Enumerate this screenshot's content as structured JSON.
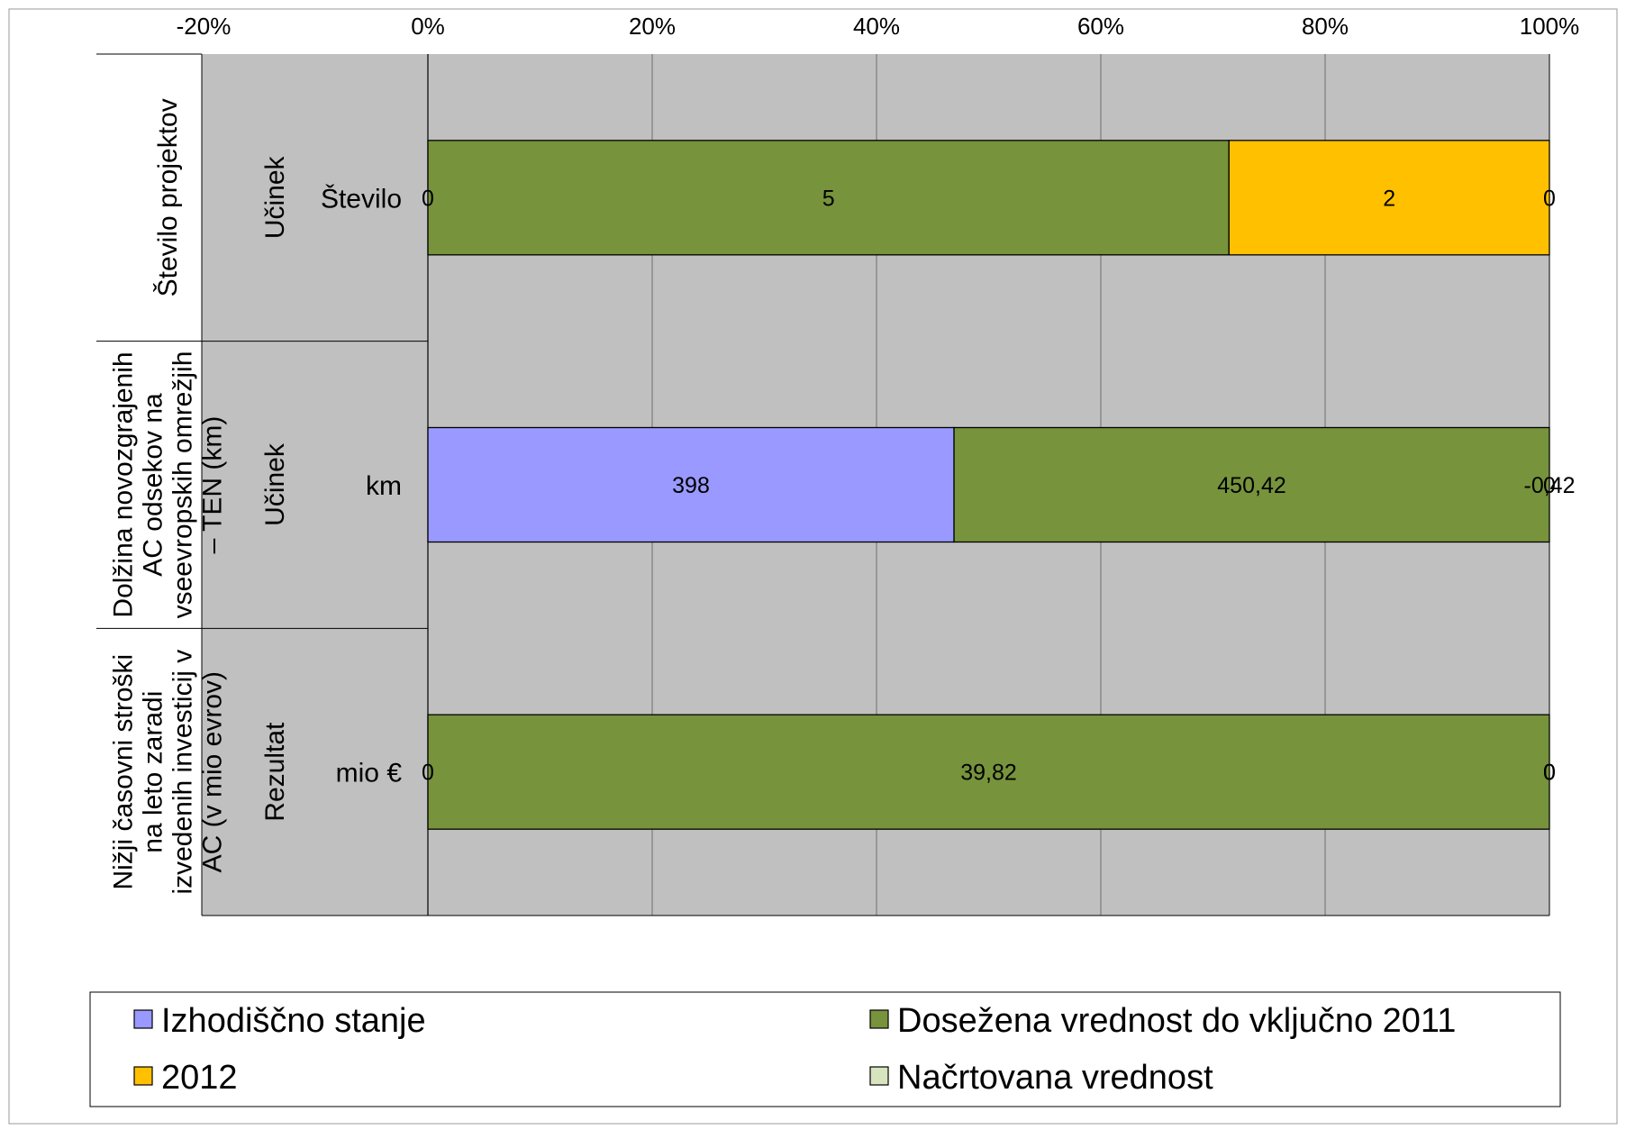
{
  "chart_data": {
    "type": "bar",
    "orientation": "horizontal",
    "stacked": "percent",
    "x_axis": {
      "position": "top",
      "range": [
        -0.2,
        1.0
      ],
      "tick_labels": [
        "-20%",
        "0%",
        "20%",
        "40%",
        "60%",
        "80%",
        "100%"
      ]
    },
    "grid": true,
    "series": [
      {
        "name": "Izhodiščno stanje",
        "color": "#9999ff"
      },
      {
        "name": "Dosežena vrednost do vključno 2011",
        "color": "#77933c"
      },
      {
        "name": "2012",
        "color": "#ffc000"
      },
      {
        "name": "Načrtovana vrednost",
        "color": "#d7e4bd"
      }
    ],
    "rows": [
      {
        "indicator": "Število projektov",
        "indicator_lines": [
          "Število projektov"
        ],
        "kind": "Učinek",
        "unit": "Število",
        "values": [
          0,
          5,
          2,
          0
        ],
        "labels": [
          "0",
          "5",
          "2",
          "0"
        ]
      },
      {
        "indicator": "Dolžina novozgrajenih AC odsekov na vseevropskih omrežjih – TEN (km)",
        "indicator_lines": [
          "Dolžina novozgrajenih",
          "AC odsekov na",
          "vseevropskih omrežjih",
          "– TEN (km)"
        ],
        "kind": "Učinek",
        "unit": "km",
        "values": [
          398,
          450.42,
          -0.42,
          0
        ],
        "labels": [
          "398",
          "450,42",
          "-0,42",
          "0"
        ]
      },
      {
        "indicator": "Nižji časovni stroški na leto zaradi izvedenih investicij v AC (v mio evrov)",
        "indicator_lines": [
          "Nižji časovni stroški",
          "na leto zaradi",
          "izvedenih investicij v",
          "AC (v mio evrov)"
        ],
        "kind": "Rezultat",
        "unit": "mio €",
        "values": [
          0,
          39.82,
          0,
          0
        ],
        "labels": [
          "0",
          "39,82",
          "0",
          "0"
        ]
      }
    ],
    "legend": {
      "placement": "bottom"
    }
  }
}
